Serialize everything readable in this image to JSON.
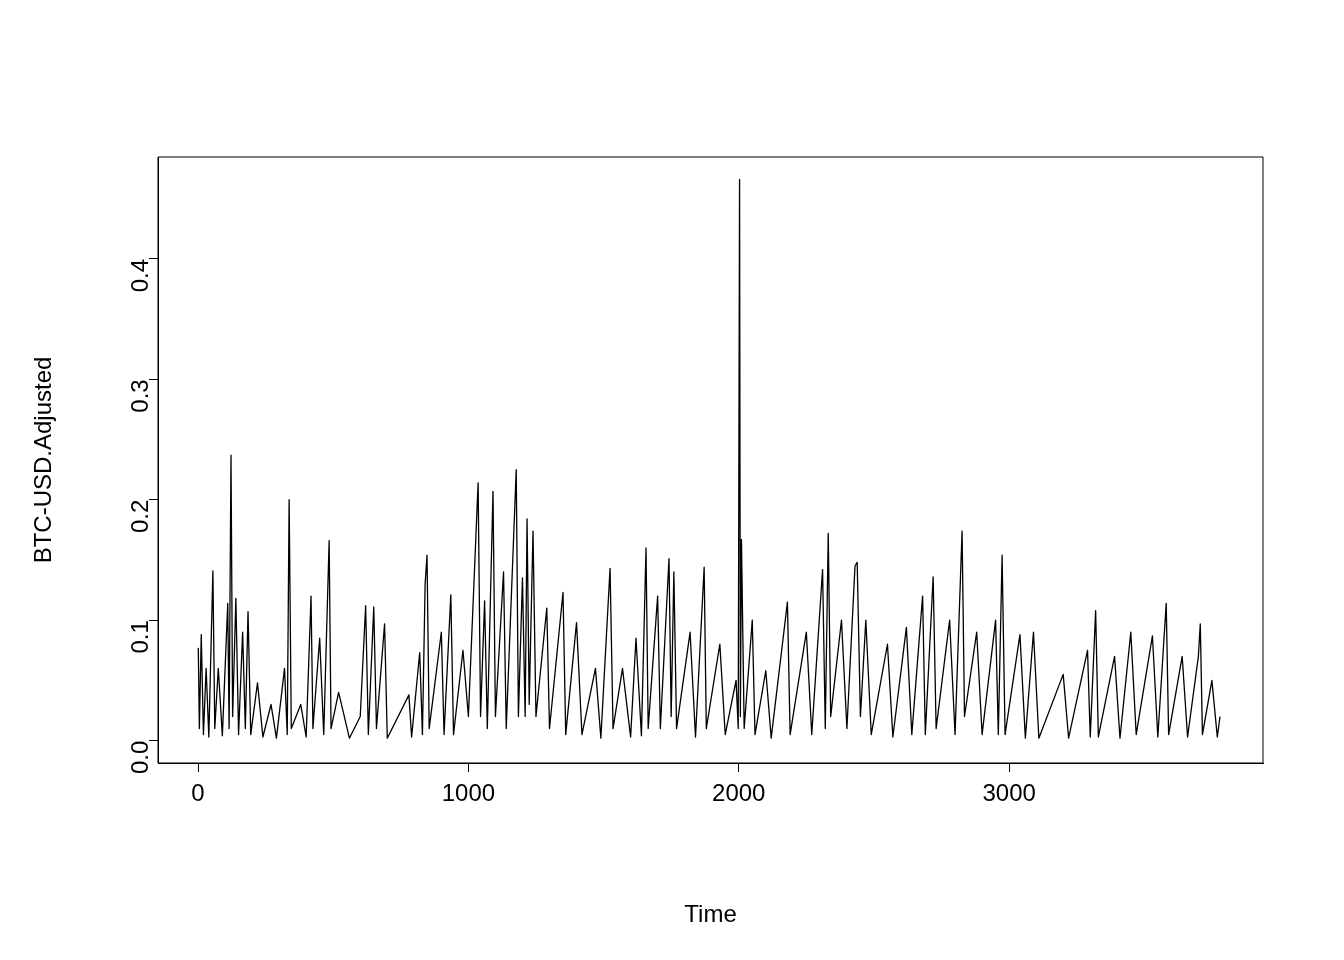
{
  "chart_data": {
    "type": "line",
    "xlabel": "Time",
    "ylabel": "BTC-USD.Adjusted",
    "x": [
      1,
      5,
      12,
      20,
      30,
      40,
      55,
      62,
      75,
      90,
      110,
      115,
      122,
      128,
      140,
      150,
      165,
      175,
      185,
      195,
      220,
      240,
      270,
      290,
      320,
      330,
      337,
      345,
      380,
      400,
      418,
      425,
      450,
      465,
      485,
      492,
      520,
      560,
      600,
      620,
      630,
      650,
      660,
      690,
      700,
      780,
      790,
      820,
      830,
      840,
      847,
      855,
      900,
      910,
      935,
      945,
      980,
      1000,
      1036,
      1045,
      1060,
      1070,
      1091,
      1100,
      1130,
      1140,
      1177,
      1185,
      1200,
      1210,
      1217,
      1225,
      1239,
      1250,
      1290,
      1300,
      1350,
      1360,
      1400,
      1420,
      1470,
      1490,
      1524,
      1535,
      1570,
      1600,
      1620,
      1640,
      1657,
      1665,
      1700,
      1710,
      1742,
      1750,
      1760,
      1770,
      1820,
      1840,
      1872,
      1880,
      1930,
      1950,
      1990,
      1998,
      2003,
      2006,
      2010,
      2020,
      2050,
      2060,
      2100,
      2120,
      2180,
      2190,
      2250,
      2270,
      2310,
      2320,
      2331,
      2340,
      2380,
      2400,
      2430,
      2438,
      2450,
      2470,
      2490,
      2550,
      2570,
      2620,
      2640,
      2680,
      2690,
      2719,
      2730,
      2780,
      2800,
      2826,
      2835,
      2880,
      2900,
      2950,
      2960,
      2974,
      2985,
      3040,
      3060,
      3090,
      3110,
      3200,
      3220,
      3290,
      3300,
      3320,
      3330,
      3390,
      3410,
      3450,
      3470,
      3530,
      3550,
      3581,
      3590,
      3640,
      3660,
      3700,
      3707,
      3715,
      3750,
      3770,
      3780
    ],
    "values": [
      0.077,
      0.01,
      0.088,
      0.005,
      0.06,
      0.003,
      0.141,
      0.01,
      0.06,
      0.004,
      0.114,
      0.01,
      0.237,
      0.02,
      0.118,
      0.005,
      0.09,
      0.01,
      0.107,
      0.005,
      0.048,
      0.003,
      0.03,
      0.002,
      0.06,
      0.005,
      0.2,
      0.01,
      0.03,
      0.003,
      0.12,
      0.01,
      0.085,
      0.005,
      0.166,
      0.01,
      0.04,
      0.002,
      0.02,
      0.112,
      0.005,
      0.111,
      0.01,
      0.097,
      0.002,
      0.038,
      0.003,
      0.073,
      0.005,
      0.13,
      0.154,
      0.01,
      0.09,
      0.005,
      0.121,
      0.005,
      0.075,
      0.02,
      0.214,
      0.02,
      0.116,
      0.01,
      0.207,
      0.02,
      0.14,
      0.01,
      0.225,
      0.02,
      0.135,
      0.02,
      0.184,
      0.03,
      0.174,
      0.02,
      0.11,
      0.01,
      0.123,
      0.005,
      0.098,
      0.005,
      0.06,
      0.002,
      0.143,
      0.01,
      0.06,
      0.003,
      0.085,
      0.004,
      0.16,
      0.01,
      0.12,
      0.01,
      0.151,
      0.02,
      0.14,
      0.01,
      0.09,
      0.003,
      0.144,
      0.01,
      0.08,
      0.005,
      0.05,
      0.01,
      0.466,
      0.02,
      0.167,
      0.01,
      0.1,
      0.005,
      0.058,
      0.002,
      0.115,
      0.005,
      0.09,
      0.005,
      0.142,
      0.01,
      0.172,
      0.02,
      0.1,
      0.01,
      0.145,
      0.148,
      0.02,
      0.1,
      0.005,
      0.08,
      0.003,
      0.094,
      0.005,
      0.12,
      0.005,
      0.136,
      0.01,
      0.1,
      0.005,
      0.174,
      0.02,
      0.09,
      0.005,
      0.1,
      0.005,
      0.154,
      0.005,
      0.088,
      0.002,
      0.09,
      0.002,
      0.055,
      0.002,
      0.075,
      0.003,
      0.108,
      0.003,
      0.07,
      0.002,
      0.09,
      0.005,
      0.087,
      0.003,
      0.114,
      0.005,
      0.07,
      0.003,
      0.07,
      0.097,
      0.005,
      0.05,
      0.003,
      0.02
    ],
    "color": "#000000",
    "marker": "none",
    "line_style": "solid",
    "xlim": [
      -148,
      3939
    ],
    "ylim": [
      -0.0186,
      0.4846
    ],
    "xticks": [
      0,
      1000,
      2000,
      3000
    ],
    "yticks": [
      {
        "value": 0,
        "label": "0.0"
      },
      0.1,
      0.2,
      0.3,
      0.4
    ]
  }
}
